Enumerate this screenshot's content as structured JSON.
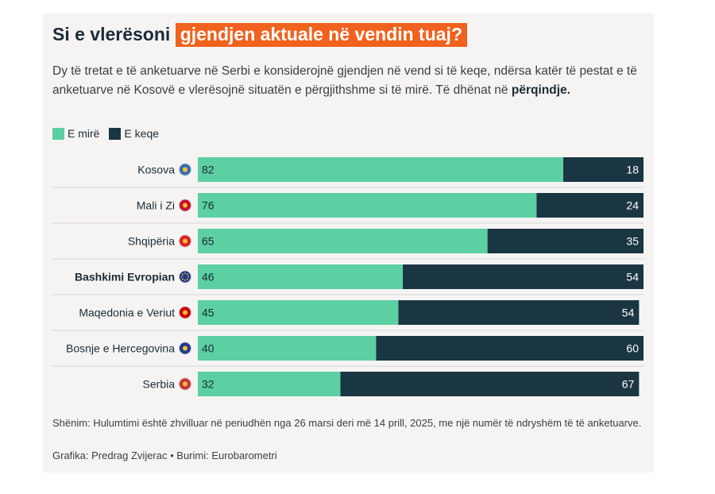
{
  "header": {
    "title_plain": "Si e vlerësoni",
    "title_highlight": "gjendjen aktuale në vendin tuaj?",
    "subtitle_main": "Dy të tretat e të anketuarve në Serbi e konsiderojnë gjendjen në vend si të keqe, ndërsa katër të pestat e të anketuarve në Kosovë e vlerësojnë situatën e përgjithshme si të mirë. Të dhënat në",
    "subtitle_bold": "përqindje."
  },
  "legend": {
    "good": "E mirë",
    "bad": "E keqe"
  },
  "colors": {
    "good": "#5ccfa3",
    "bad": "#1b3643",
    "accent": "#f0621d",
    "grid": "#d9d9d9"
  },
  "chart_data": {
    "type": "bar",
    "orientation": "horizontal",
    "stacked": true,
    "categories": [
      "Kosova",
      "Mali i Zi",
      "Shqipëria",
      "Bashkimi Evropian",
      "Maqedonia e Veriut",
      "Bosnje e Hercegovina",
      "Serbia"
    ],
    "highlight_category": "Bashkimi Evropian",
    "series": [
      {
        "name": "E mirë",
        "values": [
          82,
          76,
          65,
          46,
          45,
          40,
          32
        ]
      },
      {
        "name": "E keqe",
        "values": [
          18,
          24,
          35,
          54,
          54,
          60,
          67
        ]
      }
    ],
    "xlim": [
      0,
      100
    ]
  },
  "footer": {
    "note": "Shënim: Hulumtimi është zhvilluar në periudhën nga 26 marsi deri më 14 prill, 2025, me një numër të ndryshëm të të anketuarve.",
    "credit": "Grafika: Predrag Zvijerac • Burimi: Eurobarometri"
  }
}
